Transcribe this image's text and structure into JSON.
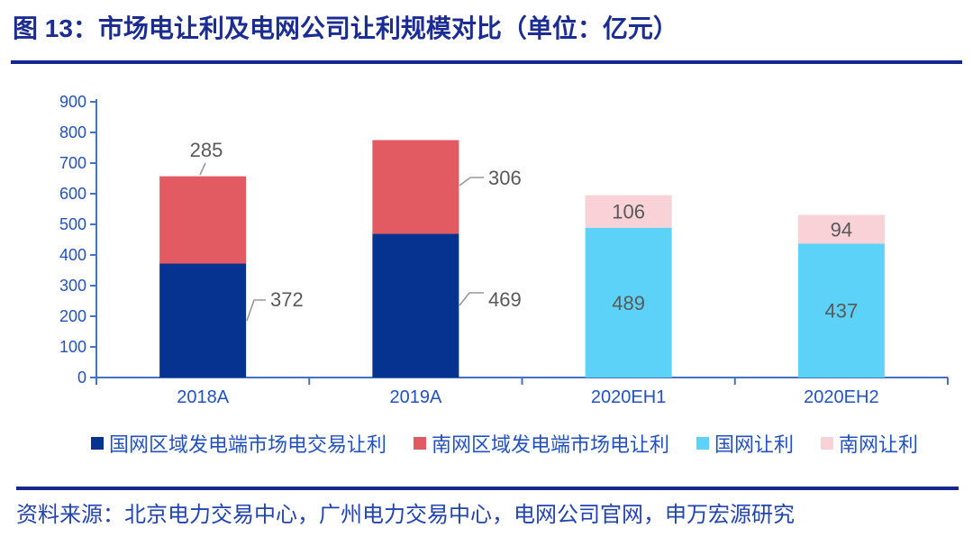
{
  "figure": {
    "title": "图 13：市场电让利及电网公司让利规模对比（单位：亿元）",
    "source": "资料来源：北京电力交易中心，广州电力交易中心，电网公司官网，申万宏源研究"
  },
  "colors": {
    "title_text": "#1B2D93",
    "divider": "#16288F",
    "axis_line": "#4472C4",
    "axis_text": "#2251C4",
    "legend_text": "#2251C4",
    "source_text": "#2244B2",
    "data_label": "#595959",
    "leader_line": "#999999"
  },
  "chart_data": {
    "type": "bar",
    "stacked": true,
    "title": "市场电让利及电网公司让利规模对比",
    "unit": "亿元",
    "categories": [
      "2018A",
      "2019A",
      "2020EH1",
      "2020EH2"
    ],
    "series": [
      {
        "name": "国网区域发电端市场电交易让利",
        "color": "#063390",
        "values": [
          372,
          469,
          null,
          null
        ]
      },
      {
        "name": "南网区域发电端市场电让利",
        "color": "#E25B62",
        "values": [
          285,
          306,
          null,
          null
        ]
      },
      {
        "name": "国网让利",
        "color": "#5CD2F8",
        "values": [
          null,
          null,
          489,
          437
        ]
      },
      {
        "name": "南网让利",
        "color": "#F8D2D7",
        "values": [
          null,
          null,
          106,
          94
        ]
      }
    ],
    "ylim": [
      0,
      900
    ],
    "ytick_step": 100,
    "grid": false,
    "legend_position": "bottom"
  }
}
